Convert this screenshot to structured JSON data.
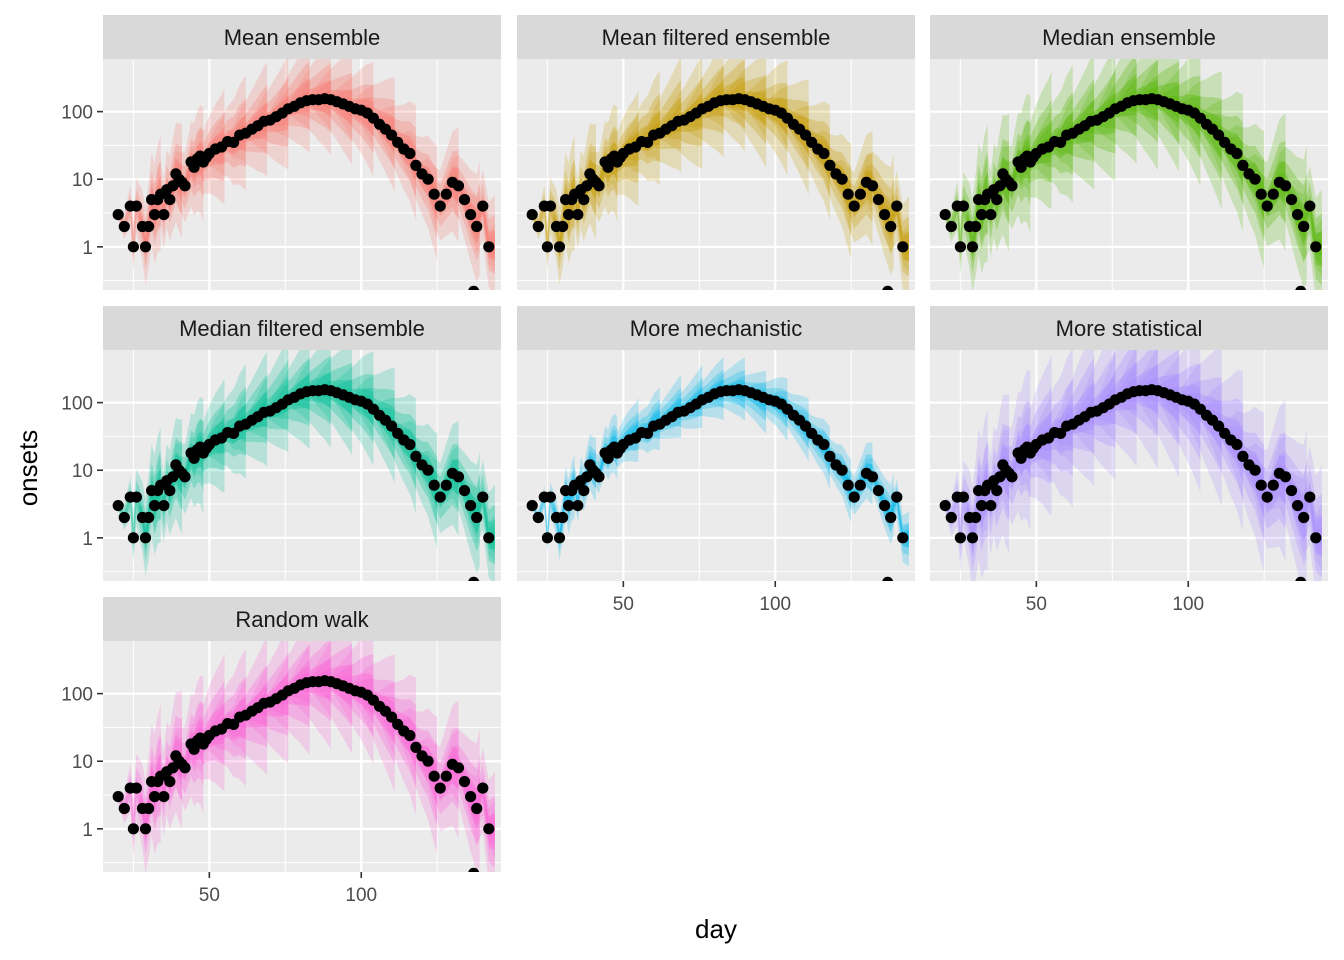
{
  "chart_data": {
    "type": "scatter",
    "facet_layout": "3 columns",
    "xlabel": "day",
    "ylabel": "onsets",
    "y_scale": "log10",
    "x_ticks": [
      50,
      100
    ],
    "y_ticks": [
      1,
      10,
      100
    ],
    "y_tick_labels": [
      "1",
      "10",
      "100"
    ],
    "xlim": [
      15,
      146
    ],
    "ylim": [
      0.23,
      600
    ],
    "grid": true,
    "legend": "none",
    "point_color": "#000000",
    "observed": {
      "day": [
        20,
        22,
        24,
        25,
        26,
        28,
        29,
        30,
        31,
        32,
        33,
        34,
        35,
        36,
        37,
        38,
        39,
        40,
        41,
        42,
        44,
        45,
        46,
        47,
        48,
        49,
        50,
        52,
        54,
        56,
        58,
        60,
        62,
        64,
        66,
        68,
        70,
        72,
        74,
        76,
        78,
        80,
        82,
        84,
        86,
        88,
        90,
        92,
        94,
        96,
        98,
        100,
        102,
        104,
        106,
        108,
        110,
        112,
        114,
        116,
        118,
        120,
        122,
        124,
        126,
        128,
        130,
        132,
        134,
        136,
        138,
        140,
        142
      ],
      "onsets": [
        3,
        2,
        4,
        1,
        4,
        2,
        1,
        2,
        5,
        3,
        5,
        6,
        3,
        7,
        5,
        8,
        12,
        10,
        9,
        8,
        18,
        15,
        20,
        22,
        18,
        21,
        24,
        28,
        30,
        36,
        35,
        45,
        48,
        55,
        62,
        72,
        75,
        84,
        95,
        110,
        120,
        135,
        145,
        150,
        150,
        155,
        150,
        140,
        130,
        120,
        110,
        105,
        95,
        80,
        65,
        55,
        45,
        35,
        28,
        24,
        16,
        12,
        10,
        6,
        4,
        6,
        9,
        8,
        5,
        3,
        2,
        4,
        1
      ],
      "extra_points": [
        {
          "day": 137,
          "onsets": 0.22
        }
      ]
    },
    "panels": [
      {
        "title": "Mean ensemble",
        "color": "#F8766D",
        "band_scale": 1.0
      },
      {
        "title": "Mean filtered ensemble",
        "color": "#C49A00",
        "band_scale": 1.0
      },
      {
        "title": "Median ensemble",
        "color": "#53B400",
        "band_scale": 1.2
      },
      {
        "title": "Median filtered ensemble",
        "color": "#00C094",
        "band_scale": 1.0
      },
      {
        "title": "More mechanistic",
        "color": "#00B6EB",
        "band_scale": 0.55
      },
      {
        "title": "More statistical",
        "color": "#A58AFF",
        "band_scale": 1.4
      },
      {
        "title": "Random walk",
        "color": "#FB61D7",
        "band_scale": 1.2
      }
    ]
  }
}
